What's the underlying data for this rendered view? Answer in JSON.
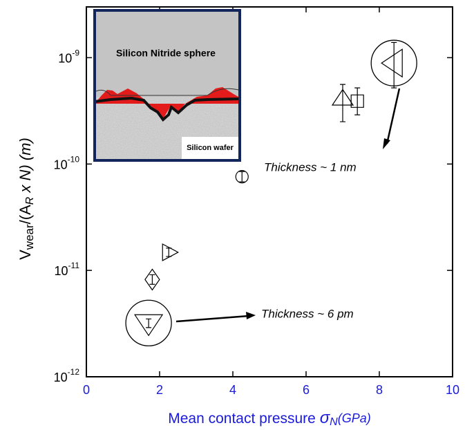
{
  "chart_data": {
    "type": "scatter",
    "ylabel": [
      "V",
      "wear",
      "/(A",
      "R",
      " x N) ",
      "(m)"
    ],
    "xlabel": [
      "Mean contact pressure ",
      "σ",
      "N",
      "(GPa)"
    ],
    "x": [
      8.4,
      7.0,
      7.4,
      4.25,
      2.25,
      1.8,
      1.7
    ],
    "values": [
      8.9e-10,
      4.1e-10,
      3.9e-10,
      7.6e-11,
      1.48e-11,
      8.2e-12,
      3.2e-12
    ],
    "yerr_low": [
      5.2e-10,
      2.5e-10,
      2.9e-10,
      6.8e-11,
      1.35e-11,
      7.4e-12,
      2.9e-12
    ],
    "yerr_high": [
      1.39e-09,
      5.6e-10,
      5.2e-10,
      8.5e-11,
      1.62e-11,
      9.1e-12,
      3.5e-12
    ],
    "markers": [
      "triangle-left",
      "triangle-up",
      "square",
      "circle",
      "triangle-right",
      "diamond",
      "triangle-down"
    ],
    "circled": [
      true,
      false,
      false,
      false,
      false,
      false,
      true
    ],
    "color": "#000000",
    "log_y": true,
    "xlim": [
      0,
      10
    ],
    "xticks": [
      0,
      2,
      4,
      6,
      8,
      10
    ],
    "ylim": [
      1e-12,
      3e-09
    ],
    "yticks": [
      {
        "value": 1e-12,
        "label": "10",
        "exponent": "-12"
      },
      {
        "value": 1e-11,
        "label": "10",
        "exponent": "-11"
      },
      {
        "value": 1e-10,
        "label": "10",
        "exponent": "-10"
      },
      {
        "value": 1e-09,
        "label": "10",
        "exponent": "-9"
      }
    ],
    "x_axis_color": "#1a1adb",
    "annotations": [
      "Thickness ~ 1 nm",
      "Thickness ~ 6 pm"
    ],
    "inset_labels": [
      "Silicon Nitride sphere",
      "Silicon wafer"
    ]
  }
}
